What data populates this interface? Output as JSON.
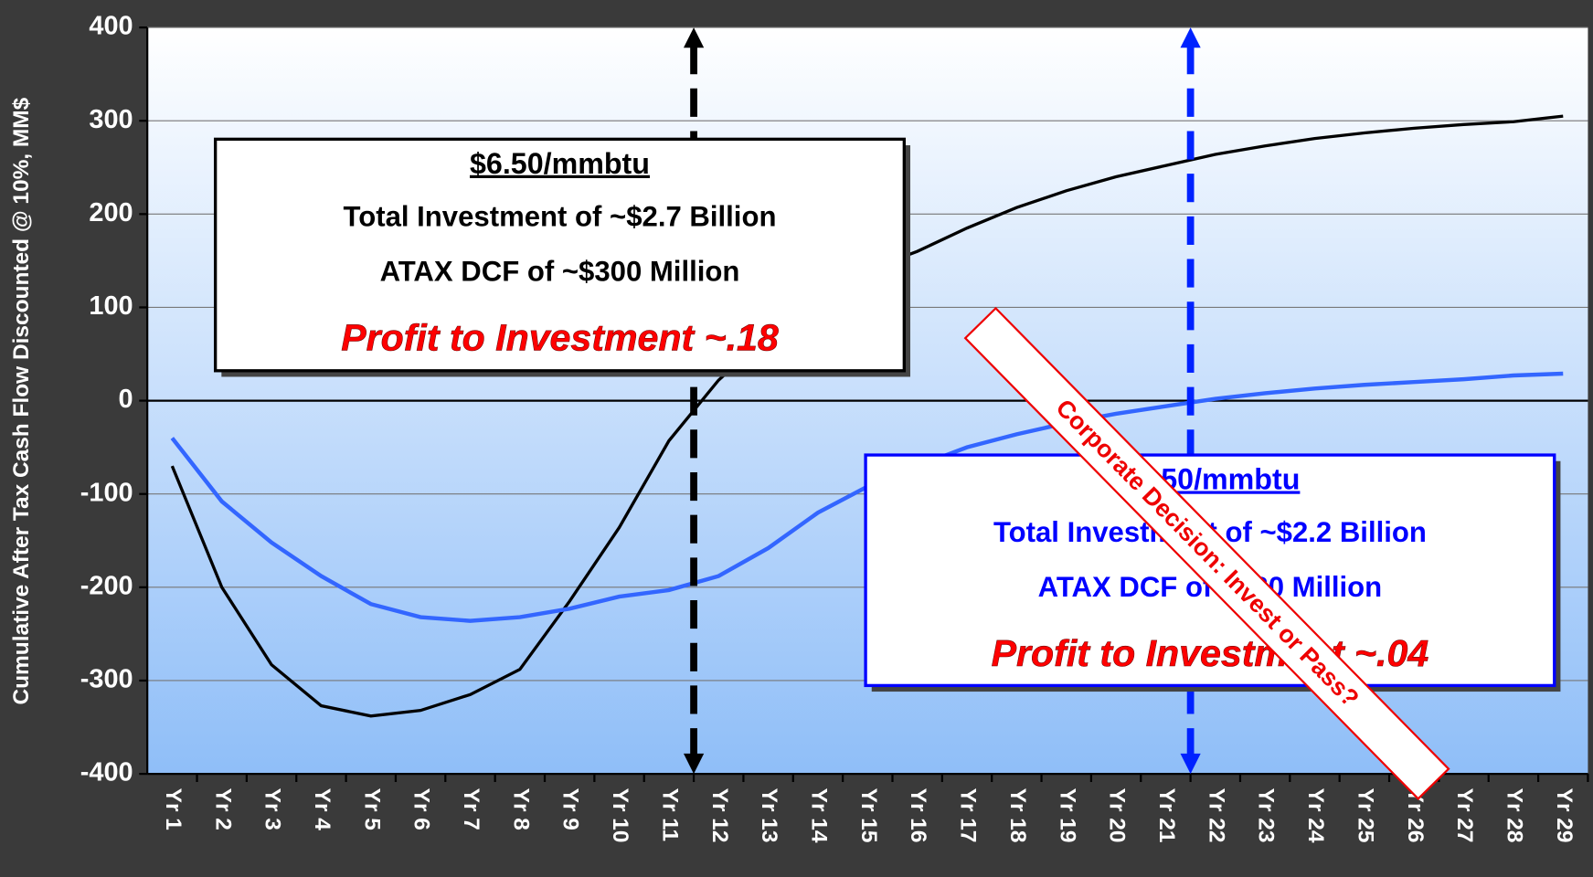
{
  "chart_data": {
    "type": "line",
    "y_label": "Cumulative After Tax Cash Flow Discounted @ 10%, MM$",
    "categories": [
      "Yr 1",
      "Yr 2",
      "Yr 3",
      "Yr 4",
      "Yr 5",
      "Yr 6",
      "Yr 7",
      "Yr 8",
      "Yr 9",
      "Yr 10",
      "Yr 11",
      "Yr 12",
      "Yr 13",
      "Yr 14",
      "Yr 15",
      "Yr 16",
      "Yr 17",
      "Yr 18",
      "Yr 19",
      "Yr 20",
      "Yr 21",
      "Yr 22",
      "Yr 23",
      "Yr 24",
      "Yr 25",
      "Yr 26",
      "Yr 27",
      "Yr 28",
      "Yr 29"
    ],
    "series": [
      {
        "color": "#000000",
        "values": [
          -70,
          -200,
          -283,
          -327,
          -338,
          -332,
          -315,
          -288,
          -215,
          -136,
          -43,
          22,
          70,
          110,
          140,
          160,
          185,
          207,
          225,
          240,
          252,
          264,
          273,
          281,
          287,
          292,
          296,
          299,
          305
        ]
      },
      {
        "color": "#3366ff",
        "values": [
          -40,
          -108,
          -152,
          -188,
          -218,
          -232,
          -236,
          -232,
          -223,
          -210,
          -203,
          -188,
          -158,
          -120,
          -92,
          -70,
          -50,
          -36,
          -24,
          -14,
          -6,
          2,
          8,
          13,
          17,
          20,
          23,
          27,
          29
        ]
      }
    ],
    "ylim": [
      -400,
      400
    ],
    "yticks": [
      -400,
      -300,
      -200,
      -100,
      0,
      100,
      200,
      300,
      400
    ],
    "boxes": [
      {
        "color": "#000000",
        "lines": [
          "$6.50/mmbtu",
          "Total Investment of ~$2.7 Billion",
          "ATAX DCF of ~$300 Million",
          "Profit to Investment ~.18"
        ]
      },
      {
        "color": "#0000ff",
        "lines": [
          "$5.50/mmbtu",
          "Total Investment of ~$2.2 Billion",
          "ATAX DCF of ~$30 Million",
          "Profit to Investment ~.04"
        ]
      }
    ],
    "banner": "Corporate Decision: Invest or Pass?"
  }
}
